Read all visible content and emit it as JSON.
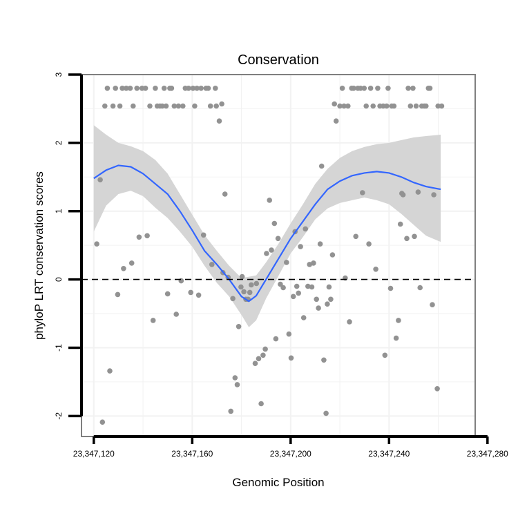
{
  "chart_data": {
    "type": "scatter",
    "title": "Conservation",
    "xlabel": "Genomic Position",
    "ylabel": "phyloP LRT conservation scores",
    "xlim": [
      23347115,
      23347275
    ],
    "ylim": [
      -2.3,
      3.0
    ],
    "x_ticks": [
      23347120,
      23347160,
      23347200,
      23347240,
      23347280
    ],
    "x_tick_labels": [
      "23,347,120",
      "23,347,160",
      "23,347,200",
      "23,347,240",
      "23,347,280"
    ],
    "y_ticks": [
      -2,
      -1,
      0,
      1,
      2,
      3
    ],
    "y_tick_labels": [
      "-2",
      "-1",
      "0",
      "1",
      "2",
      "3"
    ],
    "reference_line": {
      "y": 0,
      "style": "dashed"
    },
    "grid": true,
    "colors": {
      "points": "#929292",
      "smooth": "#3366ff",
      "band": "#d5d5d5",
      "frame": "#7f7f7f",
      "grid": "#f2f2f2"
    },
    "series": [
      {
        "name": "points",
        "points": [
          [
            23347121.2,
            0.52
          ],
          [
            23347122.6,
            1.46
          ],
          [
            23347123.5,
            -2.09
          ],
          [
            23347124.5,
            2.54
          ],
          [
            23347125.5,
            2.8
          ],
          [
            23347126.5,
            -1.34
          ],
          [
            23347127.8,
            2.54
          ],
          [
            23347128.8,
            2.8
          ],
          [
            23347129.7,
            -0.22
          ],
          [
            23347130.6,
            2.54
          ],
          [
            23347131.6,
            2.8
          ],
          [
            23347132.1,
            0.16
          ],
          [
            23347133.2,
            2.8
          ],
          [
            23347134.8,
            2.8
          ],
          [
            23347135.4,
            0.24
          ],
          [
            23347136.0,
            2.54
          ],
          [
            23347137.5,
            2.8
          ],
          [
            23347138.4,
            0.62
          ],
          [
            23347139.6,
            2.8
          ],
          [
            23347141.0,
            2.8
          ],
          [
            23347141.7,
            0.64
          ],
          [
            23347142.8,
            2.54
          ],
          [
            23347144.1,
            -0.6
          ],
          [
            23347145.0,
            2.8
          ],
          [
            23347145.8,
            2.54
          ],
          [
            23347146.9,
            2.54
          ],
          [
            23347147.8,
            2.54
          ],
          [
            23347148.6,
            2.8
          ],
          [
            23347149.4,
            2.54
          ],
          [
            23347150.0,
            -0.21
          ],
          [
            23347150.9,
            2.8
          ],
          [
            23347151.6,
            2.8
          ],
          [
            23347152.7,
            2.54
          ],
          [
            23347153.5,
            -0.51
          ],
          [
            23347154.4,
            2.54
          ],
          [
            23347155.5,
            -0.02
          ],
          [
            23347156.2,
            2.54
          ],
          [
            23347157.2,
            2.8
          ],
          [
            23347158.5,
            2.8
          ],
          [
            23347159.4,
            -0.19
          ],
          [
            23347160.3,
            2.8
          ],
          [
            23347161.0,
            2.54
          ],
          [
            23347161.9,
            2.8
          ],
          [
            23347162.6,
            -0.23
          ],
          [
            23347163.6,
            2.8
          ],
          [
            23347164.6,
            0.65
          ],
          [
            23347165.6,
            2.8
          ],
          [
            23347166.5,
            2.8
          ],
          [
            23347167.4,
            2.54
          ],
          [
            23347168.0,
            0.22
          ],
          [
            23347169.4,
            2.8
          ],
          [
            23347169.8,
            2.54
          ],
          [
            23347171.0,
            2.32
          ],
          [
            23347172.0,
            2.57
          ],
          [
            23347172.5,
            0.1
          ],
          [
            23347173.3,
            1.25
          ],
          [
            23347174.6,
            0.03
          ],
          [
            23347175.7,
            -1.93
          ],
          [
            23347176.5,
            -0.28
          ],
          [
            23347177.4,
            -1.44
          ],
          [
            23347178.3,
            -1.54
          ],
          [
            23347178.9,
            -0.69
          ],
          [
            23347179.8,
            -0.11
          ],
          [
            23347180.3,
            0.04
          ],
          [
            23347181.0,
            -0.18
          ],
          [
            23347181.8,
            -0.29
          ],
          [
            23347182.7,
            -0.29
          ],
          [
            23347183.4,
            -0.19
          ],
          [
            23347184.0,
            -0.08
          ],
          [
            23347185.6,
            -1.23
          ],
          [
            23347186.1,
            -0.06
          ],
          [
            23347187.0,
            -1.16
          ],
          [
            23347188.0,
            -1.82
          ],
          [
            23347188.8,
            -1.11
          ],
          [
            23347189.7,
            -1.02
          ],
          [
            23347190.2,
            0.38
          ],
          [
            23347191.4,
            1.16
          ],
          [
            23347192.2,
            0.43
          ],
          [
            23347193.4,
            0.82
          ],
          [
            23347194.0,
            -0.87
          ],
          [
            23347194.9,
            0.6
          ],
          [
            23347195.8,
            -0.07
          ],
          [
            23347197.0,
            -0.12
          ],
          [
            23347198.3,
            0.25
          ],
          [
            23347199.3,
            -0.8
          ],
          [
            23347200.2,
            -1.15
          ],
          [
            23347201.1,
            -0.25
          ],
          [
            23347201.8,
            0.7
          ],
          [
            23347202.5,
            -0.1
          ],
          [
            23347203.2,
            -0.2
          ],
          [
            23347204.0,
            0.48
          ],
          [
            23347205.3,
            -0.56
          ],
          [
            23347206.0,
            0.74
          ],
          [
            23347207.0,
            -0.1
          ],
          [
            23347207.7,
            0.22
          ],
          [
            23347208.6,
            -0.11
          ],
          [
            23347209.3,
            0.24
          ],
          [
            23347210.5,
            -0.29
          ],
          [
            23347211.3,
            -0.42
          ],
          [
            23347212.0,
            0.52
          ],
          [
            23347212.6,
            1.66
          ],
          [
            23347213.5,
            -1.18
          ],
          [
            23347214.4,
            -1.96
          ],
          [
            23347214.9,
            -0.36
          ],
          [
            23347215.6,
            -0.11
          ],
          [
            23347216.3,
            -0.29
          ],
          [
            23347217.0,
            0.36
          ],
          [
            23347217.8,
            2.57
          ],
          [
            23347218.5,
            2.32
          ],
          [
            23347220.0,
            2.54
          ],
          [
            23347221.0,
            2.8
          ],
          [
            23347221.7,
            2.54
          ],
          [
            23347222.2,
            0.02
          ],
          [
            23347223.3,
            2.54
          ],
          [
            23347223.9,
            -0.62
          ],
          [
            23347224.8,
            2.8
          ],
          [
            23347225.6,
            2.8
          ],
          [
            23347226.5,
            0.63
          ],
          [
            23347227.3,
            2.8
          ],
          [
            23347228.4,
            2.8
          ],
          [
            23347229.2,
            1.27
          ],
          [
            23347229.9,
            2.8
          ],
          [
            23347230.7,
            2.54
          ],
          [
            23347231.8,
            0.52
          ],
          [
            23347232.5,
            2.8
          ],
          [
            23347233.5,
            2.54
          ],
          [
            23347234.6,
            0.15
          ],
          [
            23347235.4,
            2.8
          ],
          [
            23347236.3,
            2.54
          ],
          [
            23347237.6,
            2.54
          ],
          [
            23347238.3,
            -1.11
          ],
          [
            23347239.0,
            2.54
          ],
          [
            23347239.6,
            2.8
          ],
          [
            23347240.6,
            -0.13
          ],
          [
            23347241.1,
            2.54
          ],
          [
            23347242.0,
            2.54
          ],
          [
            23347242.9,
            -0.86
          ],
          [
            23347243.8,
            -0.6
          ],
          [
            23347244.6,
            0.81
          ],
          [
            23347245.2,
            1.26
          ],
          [
            23347245.7,
            1.24
          ],
          [
            23347247.2,
            0.6
          ],
          [
            23347247.8,
            2.8
          ],
          [
            23347248.7,
            2.54
          ],
          [
            23347249.7,
            2.8
          ],
          [
            23347250.3,
            0.63
          ],
          [
            23347251.0,
            2.54
          ],
          [
            23347251.8,
            1.28
          ],
          [
            23347252.6,
            -0.12
          ],
          [
            23347253.3,
            2.54
          ],
          [
            23347254.3,
            2.54
          ],
          [
            23347255.0,
            2.54
          ],
          [
            23347256.0,
            2.8
          ],
          [
            23347256.6,
            2.8
          ],
          [
            23347257.6,
            -0.37
          ],
          [
            23347258.2,
            1.24
          ],
          [
            23347259.6,
            -1.6
          ],
          [
            23347259.9,
            2.54
          ],
          [
            23347261.4,
            2.54
          ]
        ]
      },
      {
        "name": "smooth",
        "curve": [
          [
            23347120,
            1.48
          ],
          [
            23347125,
            1.6
          ],
          [
            23347130,
            1.67
          ],
          [
            23347135,
            1.65
          ],
          [
            23347140,
            1.55
          ],
          [
            23347145,
            1.4
          ],
          [
            23347150,
            1.25
          ],
          [
            23347155,
            1.0
          ],
          [
            23347160,
            0.72
          ],
          [
            23347165,
            0.42
          ],
          [
            23347170,
            0.22
          ],
          [
            23347175,
            0.0
          ],
          [
            23347180,
            -0.25
          ],
          [
            23347183,
            -0.32
          ],
          [
            23347186,
            -0.24
          ],
          [
            23347190,
            0.0
          ],
          [
            23347195,
            0.3
          ],
          [
            23347200,
            0.6
          ],
          [
            23347205,
            0.85
          ],
          [
            23347210,
            1.1
          ],
          [
            23347215,
            1.32
          ],
          [
            23347220,
            1.44
          ],
          [
            23347225,
            1.52
          ],
          [
            23347230,
            1.56
          ],
          [
            23347235,
            1.58
          ],
          [
            23347240,
            1.56
          ],
          [
            23347245,
            1.5
          ],
          [
            23347250,
            1.42
          ],
          [
            23347255,
            1.36
          ],
          [
            23347261,
            1.32
          ]
        ],
        "band_upper": [
          [
            23347120,
            2.26
          ],
          [
            23347125,
            2.12
          ],
          [
            23347130,
            2.0
          ],
          [
            23347135,
            1.95
          ],
          [
            23347140,
            1.88
          ],
          [
            23347145,
            1.75
          ],
          [
            23347150,
            1.55
          ],
          [
            23347155,
            1.25
          ],
          [
            23347160,
            0.95
          ],
          [
            23347165,
            0.65
          ],
          [
            23347170,
            0.42
          ],
          [
            23347175,
            0.2
          ],
          [
            23347180,
            0.02
          ],
          [
            23347183,
            0.04
          ],
          [
            23347186,
            0.06
          ],
          [
            23347190,
            0.25
          ],
          [
            23347195,
            0.52
          ],
          [
            23347200,
            0.82
          ],
          [
            23347205,
            1.1
          ],
          [
            23347210,
            1.4
          ],
          [
            23347215,
            1.62
          ],
          [
            23347220,
            1.78
          ],
          [
            23347225,
            1.88
          ],
          [
            23347230,
            1.94
          ],
          [
            23347235,
            1.98
          ],
          [
            23347240,
            2.0
          ],
          [
            23347245,
            2.04
          ],
          [
            23347250,
            2.08
          ],
          [
            23347255,
            2.1
          ],
          [
            23347261,
            2.12
          ]
        ],
        "band_lower": [
          [
            23347120,
            0.7
          ],
          [
            23347125,
            1.08
          ],
          [
            23347130,
            1.25
          ],
          [
            23347135,
            1.3
          ],
          [
            23347140,
            1.22
          ],
          [
            23347145,
            1.05
          ],
          [
            23347150,
            0.9
          ],
          [
            23347155,
            0.7
          ],
          [
            23347160,
            0.48
          ],
          [
            23347165,
            0.2
          ],
          [
            23347170,
            -0.05
          ],
          [
            23347175,
            -0.25
          ],
          [
            23347180,
            -0.52
          ],
          [
            23347183,
            -0.7
          ],
          [
            23347186,
            -0.6
          ],
          [
            23347190,
            -0.28
          ],
          [
            23347195,
            0.05
          ],
          [
            23347200,
            0.38
          ],
          [
            23347205,
            0.62
          ],
          [
            23347210,
            0.88
          ],
          [
            23347215,
            1.04
          ],
          [
            23347220,
            1.12
          ],
          [
            23347225,
            1.16
          ],
          [
            23347230,
            1.2
          ],
          [
            23347235,
            1.16
          ],
          [
            23347240,
            1.1
          ],
          [
            23347245,
            0.96
          ],
          [
            23347250,
            0.8
          ],
          [
            23347255,
            0.64
          ],
          [
            23347261,
            0.55
          ]
        ]
      }
    ]
  }
}
